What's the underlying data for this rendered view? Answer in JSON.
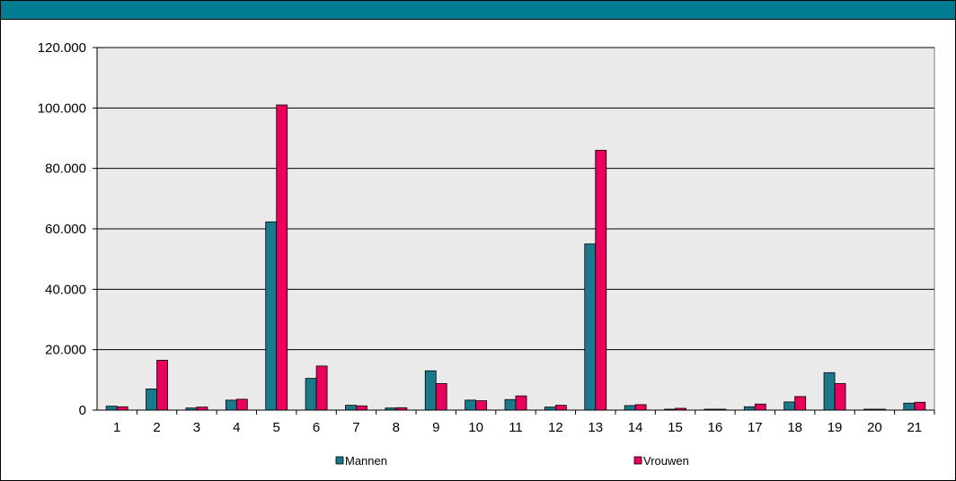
{
  "colors": {
    "header": "#007b8f",
    "plot_bg": "#eaeaea",
    "mannen": "#1a7a8c",
    "vrouwen": "#e8005c"
  },
  "chart_data": {
    "type": "bar",
    "categories": [
      "1",
      "2",
      "3",
      "4",
      "5",
      "6",
      "7",
      "8",
      "9",
      "10",
      "11",
      "12",
      "13",
      "14",
      "15",
      "16",
      "17",
      "18",
      "19",
      "20",
      "21"
    ],
    "series": [
      {
        "name": "Mannen",
        "color": "#1a7a8c",
        "values": [
          1300,
          7000,
          700,
          3300,
          62300,
          10500,
          1600,
          700,
          13000,
          3300,
          3500,
          1000,
          55000,
          1500,
          300,
          300,
          1100,
          2700,
          12400,
          300,
          2300
        ]
      },
      {
        "name": "Vrouwen",
        "color": "#e8005c",
        "values": [
          1100,
          16500,
          1000,
          3600,
          101000,
          14600,
          1400,
          800,
          8800,
          3100,
          4700,
          1600,
          86000,
          1800,
          600,
          300,
          2000,
          4500,
          8800,
          300,
          2600
        ]
      }
    ],
    "ylim": [
      0,
      120000
    ],
    "yticks": [
      0,
      20000,
      40000,
      60000,
      80000,
      100000,
      120000
    ],
    "ytick_labels": [
      "0",
      "20.000",
      "40.000",
      "60.000",
      "80.000",
      "100.000",
      "120.000"
    ],
    "grid": true,
    "legend": "bottom",
    "title": "",
    "xlabel": "",
    "ylabel": ""
  }
}
